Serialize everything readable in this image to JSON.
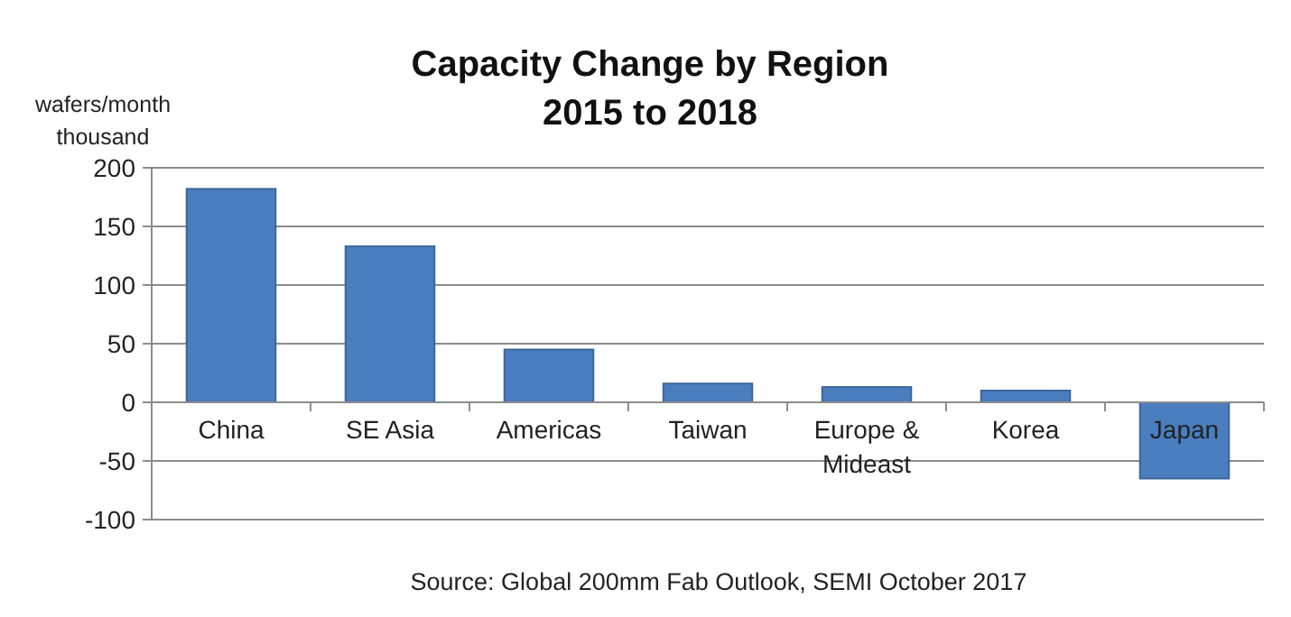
{
  "chart_data": {
    "type": "bar",
    "title": "Capacity Change by Region",
    "subtitle": "2015 to 2018",
    "ylabel": "wafers/month\nthousand",
    "categories": [
      "China",
      "SE Asia",
      "Americas",
      "Taiwan",
      "Europe & Mideast",
      "Korea",
      "Japan"
    ],
    "values": [
      182,
      133,
      45,
      16,
      13,
      10,
      -65
    ],
    "color": "#4a7ebf",
    "ylim": [
      -100,
      200
    ],
    "yticks": [
      -100,
      -50,
      0,
      50,
      100,
      150,
      200
    ],
    "grid": "y",
    "annotations": [
      "Source: Global 200mm Fab Outlook, SEMI October 2017"
    ]
  }
}
